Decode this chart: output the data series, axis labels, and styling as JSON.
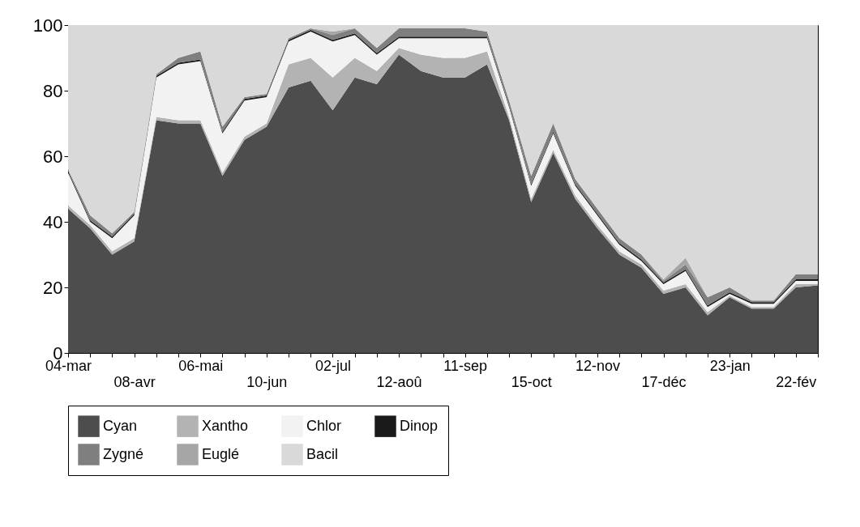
{
  "chart_data": {
    "type": "area",
    "stacked": true,
    "legend": "bottom",
    "grid": false,
    "ylim": [
      0,
      100
    ],
    "yticks": [
      0,
      20,
      40,
      60,
      80,
      100
    ],
    "categories": [
      "04-mar",
      null,
      null,
      "08-avr",
      null,
      null,
      "06-mai",
      null,
      null,
      "10-jun",
      null,
      null,
      "02-jul",
      null,
      null,
      "12-aoû",
      null,
      null,
      "11-sep",
      null,
      null,
      "15-oct",
      null,
      null,
      "12-nov",
      null,
      null,
      "17-déc",
      null,
      null,
      "23-jan",
      null,
      null,
      "22-fév",
      null
    ],
    "series": [
      {
        "name": "Cyan",
        "color": "#4d4d4d",
        "values": [
          44,
          38,
          30,
          34,
          71,
          70,
          70,
          54,
          65,
          69,
          81,
          83,
          74,
          84,
          82,
          91,
          86,
          84,
          84,
          88,
          71,
          46,
          61,
          47,
          38,
          30,
          26,
          18,
          20,
          11.5,
          17,
          13.5,
          13.5,
          20,
          20.6
        ]
      },
      {
        "name": "Xantho",
        "color": "#b3b3b3",
        "values": [
          1,
          1,
          1,
          1,
          1,
          1,
          1,
          1,
          1,
          1,
          7,
          7,
          10,
          6,
          4,
          2,
          5,
          6,
          6,
          4,
          1,
          1,
          1,
          1,
          1,
          1,
          1,
          1,
          1,
          1,
          0.5,
          0.5,
          0.5,
          1,
          0.5
        ]
      },
      {
        "name": "Chlor",
        "color": "#f2f2f2",
        "values": [
          10,
          1,
          4,
          7,
          12,
          17,
          18,
          12,
          11,
          8,
          7,
          8,
          11,
          7,
          5,
          3,
          5,
          6,
          6,
          4,
          3,
          4,
          5,
          3,
          3,
          2,
          1,
          2,
          4,
          1.5,
          0.5,
          1,
          1,
          1,
          0.9
        ]
      },
      {
        "name": "Dinop",
        "color": "#1a1a1a",
        "values": [
          0.5,
          0.5,
          0.5,
          0.5,
          0.5,
          0.5,
          0.5,
          0.5,
          0.5,
          0.5,
          0.5,
          0.5,
          0.5,
          0.5,
          0.5,
          0.5,
          0.5,
          0.5,
          0.5,
          0.5,
          0.5,
          0.5,
          0.5,
          0.5,
          0.5,
          0.5,
          0.5,
          0.5,
          0.5,
          0.5,
          0.5,
          0.5,
          0.5,
          0.5,
          0.5
        ]
      },
      {
        "name": "Zygné",
        "color": "#7f7f7f",
        "values": [
          0.5,
          1.5,
          1,
          0.5,
          0.5,
          1.5,
          2.5,
          1.5,
          0.5,
          0.5,
          0.5,
          0.5,
          1.5,
          1.5,
          1.5,
          2.5,
          2.5,
          2.5,
          2.5,
          1.5,
          1.5,
          2.5,
          2.5,
          1.5,
          1.5,
          1.5,
          1.5,
          0.5,
          1.5,
          2.5,
          1.5,
          0.5,
          0.5,
          1.5,
          1.5
        ]
      },
      {
        "name": "Euglé",
        "color": "#a6a6a6",
        "values": [
          0,
          0,
          0,
          0,
          0,
          0,
          0,
          0,
          0,
          0,
          0,
          0,
          1,
          0,
          0,
          0,
          0,
          0,
          0,
          0,
          0,
          0,
          0,
          0,
          0,
          0,
          0,
          0.5,
          2,
          0,
          0,
          0,
          0,
          0,
          0
        ]
      },
      {
        "name": "Bacil",
        "color": "#d9d9d9",
        "values": [
          44,
          58,
          63.5,
          57,
          15,
          10,
          8,
          31,
          22,
          21,
          4,
          1,
          2,
          1,
          7,
          1,
          1,
          1,
          1,
          2,
          23,
          46,
          30,
          47,
          56,
          65,
          70,
          77.5,
          71,
          83,
          80,
          84,
          84,
          76,
          76
        ]
      }
    ]
  }
}
